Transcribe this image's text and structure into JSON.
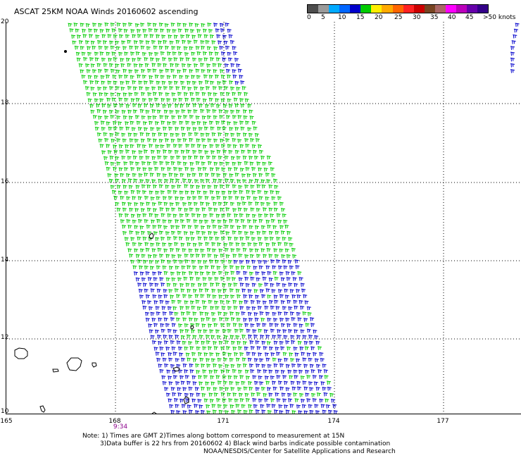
{
  "title": "ASCAT 25KM NOAA Winds 20160602 ascending",
  "legend": {
    "colors": [
      "#4d4d4d",
      "#9a9a9a",
      "#00aaff",
      "#0066ff",
      "#0000cc",
      "#00cc00",
      "#ffee00",
      "#ffaa00",
      "#ff6600",
      "#ff2222",
      "#cc0000",
      "#774422",
      "#aa6666",
      "#ff00ff",
      "#bb00bb",
      "#6600aa",
      "#330088"
    ],
    "labels": [
      "0",
      "5",
      "10",
      "15",
      "20",
      "25",
      "30",
      "35",
      "40",
      "45",
      ">50 knots"
    ]
  },
  "axes": {
    "y_labels": [
      "20",
      "18",
      "16",
      "14",
      "12",
      "10"
    ],
    "x_labels": [
      "165",
      "168",
      "171",
      "174",
      "177"
    ]
  },
  "time_label": "9:34",
  "notes": {
    "line1": "Note: 1) Times are GMT 2)Times along bottom correspond to measurement at 15N",
    "line2": "3)Data buffer is 22 hrs from 20160602 4) Black wind barbs indicate possible contamination",
    "line3": "NOAA/NESDIS/Center for Satellite Applications and Research"
  },
  "wind_colors": {
    "green": "#00cc00",
    "blue": "#0000cc"
  }
}
